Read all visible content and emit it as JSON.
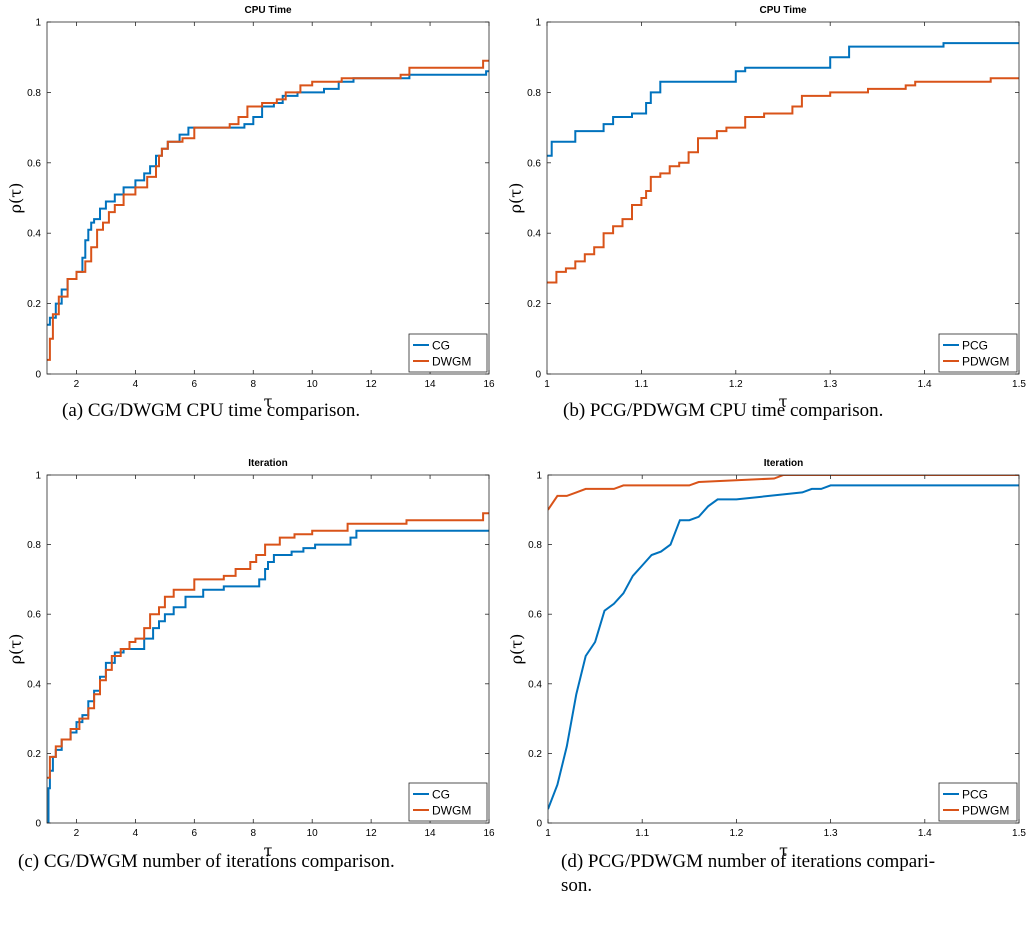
{
  "colors": {
    "series1": "#0072BD",
    "series2": "#D95319"
  },
  "chart_data": [
    {
      "type": "line",
      "step": true,
      "title": "CPU Time",
      "xlabel": "τ",
      "ylabel": "ρ(τ)",
      "xlim": [
        1,
        16
      ],
      "ylim": [
        0,
        1
      ],
      "xticks": [
        2,
        4,
        6,
        8,
        10,
        12,
        14,
        16
      ],
      "xtick_labels": [
        "2",
        "4",
        "6",
        "8",
        "10",
        "12",
        "14",
        "16"
      ],
      "yticks": [
        0,
        0.2,
        0.4,
        0.6,
        0.8,
        1
      ],
      "ytick_labels": [
        "0",
        "0.2",
        "0.4",
        "0.6",
        "0.8",
        "1"
      ],
      "legend_position": "bottom-right",
      "caption": "(a) CG/DWGM CPU time comparison.",
      "series": [
        {
          "name": "CG",
          "x": [
            1,
            1.1,
            1.3,
            1.5,
            1.7,
            2.0,
            2.2,
            2.3,
            2.4,
            2.5,
            2.6,
            2.8,
            3.0,
            3.3,
            3.6,
            4.0,
            4.3,
            4.5,
            4.7,
            4.9,
            5.1,
            5.5,
            5.8,
            6.2,
            7.7,
            8.0,
            8.3,
            8.7,
            9.0,
            9.5,
            10.4,
            10.9,
            11.4,
            13.3,
            15.9,
            16
          ],
          "y": [
            0.14,
            0.16,
            0.2,
            0.24,
            0.27,
            0.29,
            0.33,
            0.38,
            0.41,
            0.43,
            0.44,
            0.47,
            0.49,
            0.51,
            0.53,
            0.55,
            0.57,
            0.59,
            0.62,
            0.64,
            0.66,
            0.68,
            0.7,
            0.7,
            0.71,
            0.73,
            0.76,
            0.77,
            0.79,
            0.8,
            0.81,
            0.83,
            0.84,
            0.85,
            0.86,
            0.86
          ]
        },
        {
          "name": "DWGM",
          "x": [
            1,
            1.1,
            1.2,
            1.4,
            1.7,
            2.0,
            2.3,
            2.5,
            2.7,
            2.9,
            3.1,
            3.3,
            3.6,
            4.0,
            4.4,
            4.7,
            4.8,
            4.9,
            5.1,
            5.6,
            6.0,
            7.2,
            7.5,
            7.8,
            8.3,
            8.8,
            9.1,
            9.6,
            10.0,
            11.0,
            13.0,
            13.3,
            15.8,
            16
          ],
          "y": [
            0.04,
            0.1,
            0.17,
            0.22,
            0.27,
            0.29,
            0.32,
            0.36,
            0.41,
            0.43,
            0.46,
            0.48,
            0.51,
            0.53,
            0.56,
            0.59,
            0.62,
            0.64,
            0.66,
            0.67,
            0.7,
            0.71,
            0.73,
            0.76,
            0.77,
            0.78,
            0.8,
            0.82,
            0.83,
            0.84,
            0.85,
            0.87,
            0.89,
            0.89
          ]
        }
      ]
    },
    {
      "type": "line",
      "step": true,
      "title": "CPU Time",
      "xlabel": "τ",
      "ylabel": "ρ(τ)",
      "xlim": [
        1,
        1.5
      ],
      "ylim": [
        0,
        1
      ],
      "xticks": [
        1,
        1.1,
        1.2,
        1.3,
        1.4,
        1.5
      ],
      "xtick_labels": [
        "1",
        "1.1",
        "1.2",
        "1.3",
        "1.4",
        "1.5"
      ],
      "yticks": [
        0,
        0.2,
        0.4,
        0.6,
        0.8,
        1
      ],
      "ytick_labels": [
        "0",
        "0.2",
        "0.4",
        "0.6",
        "0.8",
        "1"
      ],
      "legend_position": "bottom-right",
      "caption": "(b) PCG/PDWGM CPU time comparison.",
      "series": [
        {
          "name": "PCG",
          "x": [
            1,
            1.005,
            1.02,
            1.03,
            1.04,
            1.06,
            1.07,
            1.08,
            1.09,
            1.1,
            1.105,
            1.11,
            1.12,
            1.19,
            1.2,
            1.21,
            1.22,
            1.28,
            1.3,
            1.31,
            1.32,
            1.41,
            1.42,
            1.5
          ],
          "y": [
            0.62,
            0.66,
            0.66,
            0.69,
            0.69,
            0.71,
            0.73,
            0.73,
            0.74,
            0.74,
            0.77,
            0.8,
            0.83,
            0.83,
            0.86,
            0.87,
            0.87,
            0.87,
            0.9,
            0.9,
            0.93,
            0.93,
            0.94,
            0.94
          ]
        },
        {
          "name": "PDWGM",
          "x": [
            1,
            1.01,
            1.02,
            1.03,
            1.04,
            1.05,
            1.06,
            1.07,
            1.08,
            1.09,
            1.1,
            1.105,
            1.11,
            1.12,
            1.13,
            1.14,
            1.15,
            1.16,
            1.17,
            1.18,
            1.19,
            1.2,
            1.21,
            1.22,
            1.23,
            1.24,
            1.25,
            1.26,
            1.27,
            1.28,
            1.29,
            1.3,
            1.31,
            1.32,
            1.33,
            1.34,
            1.35,
            1.36,
            1.37,
            1.38,
            1.39,
            1.4,
            1.41,
            1.42,
            1.43,
            1.44,
            1.45,
            1.46,
            1.47,
            1.48,
            1.49,
            1.5
          ],
          "y": [
            0.26,
            0.29,
            0.3,
            0.32,
            0.34,
            0.36,
            0.4,
            0.42,
            0.44,
            0.48,
            0.5,
            0.52,
            0.56,
            0.57,
            0.59,
            0.6,
            0.63,
            0.67,
            0.67,
            0.69,
            0.7,
            0.7,
            0.73,
            0.73,
            0.74,
            0.74,
            0.74,
            0.76,
            0.79,
            0.79,
            0.79,
            0.8,
            0.8,
            0.8,
            0.8,
            0.81,
            0.81,
            0.81,
            0.81,
            0.82,
            0.83,
            0.83,
            0.83,
            0.83,
            0.83,
            0.83,
            0.83,
            0.83,
            0.84,
            0.84,
            0.84,
            0.84
          ]
        }
      ]
    },
    {
      "type": "line",
      "step": true,
      "title": "Iteration",
      "xlabel": "τ",
      "ylabel": "ρ(τ)",
      "xlim": [
        1,
        16
      ],
      "ylim": [
        0,
        1
      ],
      "xticks": [
        2,
        4,
        6,
        8,
        10,
        12,
        14,
        16
      ],
      "xtick_labels": [
        "2",
        "4",
        "6",
        "8",
        "10",
        "12",
        "14",
        "16"
      ],
      "yticks": [
        0,
        0.2,
        0.4,
        0.6,
        0.8,
        1
      ],
      "ytick_labels": [
        "0",
        "0.2",
        "0.4",
        "0.6",
        "0.8",
        "1"
      ],
      "legend_position": "bottom-right",
      "caption": "(c) CG/DWGM number of iterations comparison.",
      "series": [
        {
          "name": "CG",
          "x": [
            1,
            1.05,
            1.1,
            1.2,
            1.3,
            1.5,
            1.8,
            2.0,
            2.2,
            2.4,
            2.6,
            2.8,
            3.0,
            3.3,
            3.6,
            4.0,
            4.3,
            4.6,
            4.8,
            5.0,
            5.3,
            5.7,
            6.3,
            7.0,
            8.2,
            8.4,
            8.5,
            8.7,
            9.3,
            9.7,
            10.1,
            11.3,
            11.5,
            16
          ],
          "y": [
            0,
            0.1,
            0.15,
            0.19,
            0.21,
            0.24,
            0.26,
            0.29,
            0.31,
            0.35,
            0.38,
            0.42,
            0.46,
            0.49,
            0.5,
            0.5,
            0.53,
            0.56,
            0.58,
            0.6,
            0.62,
            0.65,
            0.67,
            0.68,
            0.7,
            0.73,
            0.75,
            0.77,
            0.78,
            0.79,
            0.8,
            0.82,
            0.84,
            0.84
          ]
        },
        {
          "name": "DWGM",
          "x": [
            1,
            1.1,
            1.3,
            1.5,
            1.8,
            2.1,
            2.4,
            2.6,
            2.8,
            3.0,
            3.2,
            3.5,
            3.8,
            4.0,
            4.3,
            4.5,
            4.8,
            5.0,
            5.3,
            6.0,
            7.0,
            7.4,
            7.9,
            8.1,
            8.4,
            8.9,
            9.4,
            10.0,
            11.2,
            13.2,
            15.8,
            16
          ],
          "y": [
            0.13,
            0.19,
            0.22,
            0.24,
            0.27,
            0.3,
            0.33,
            0.37,
            0.41,
            0.44,
            0.48,
            0.5,
            0.52,
            0.53,
            0.56,
            0.6,
            0.62,
            0.65,
            0.67,
            0.7,
            0.71,
            0.73,
            0.75,
            0.77,
            0.8,
            0.82,
            0.83,
            0.84,
            0.86,
            0.87,
            0.89,
            0.89
          ]
        }
      ]
    },
    {
      "type": "line",
      "step": false,
      "title": "Iteration",
      "xlabel": "τ",
      "ylabel": "ρ(τ)",
      "xlim": [
        1,
        1.5
      ],
      "ylim": [
        0,
        1
      ],
      "xticks": [
        1,
        1.1,
        1.2,
        1.3,
        1.4,
        1.5
      ],
      "xtick_labels": [
        "1",
        "1.1",
        "1.2",
        "1.3",
        "1.4",
        "1.5"
      ],
      "yticks": [
        0,
        0.2,
        0.4,
        0.6,
        0.8,
        1
      ],
      "ytick_labels": [
        "0",
        "0.2",
        "0.4",
        "0.6",
        "0.8",
        "1"
      ],
      "legend_position": "bottom-right",
      "caption": "(d) PCG/PDWGM number of iterations compari-",
      "caption_line2": "son.",
      "series": [
        {
          "name": "PCG",
          "x": [
            1,
            1.01,
            1.02,
            1.03,
            1.04,
            1.05,
            1.06,
            1.07,
            1.08,
            1.09,
            1.1,
            1.11,
            1.12,
            1.13,
            1.14,
            1.15,
            1.16,
            1.17,
            1.18,
            1.2,
            1.27,
            1.28,
            1.29,
            1.3,
            1.5
          ],
          "y": [
            0.04,
            0.11,
            0.22,
            0.37,
            0.48,
            0.52,
            0.61,
            0.63,
            0.66,
            0.71,
            0.74,
            0.77,
            0.78,
            0.8,
            0.87,
            0.87,
            0.88,
            0.91,
            0.93,
            0.93,
            0.95,
            0.96,
            0.96,
            0.97,
            0.97
          ]
        },
        {
          "name": "PDWGM",
          "x": [
            1,
            1.01,
            1.02,
            1.03,
            1.04,
            1.07,
            1.08,
            1.15,
            1.16,
            1.24,
            1.25,
            1.5
          ],
          "y": [
            0.9,
            0.94,
            0.94,
            0.95,
            0.96,
            0.96,
            0.97,
            0.97,
            0.98,
            0.99,
            1.0,
            1.0
          ]
        }
      ]
    }
  ]
}
